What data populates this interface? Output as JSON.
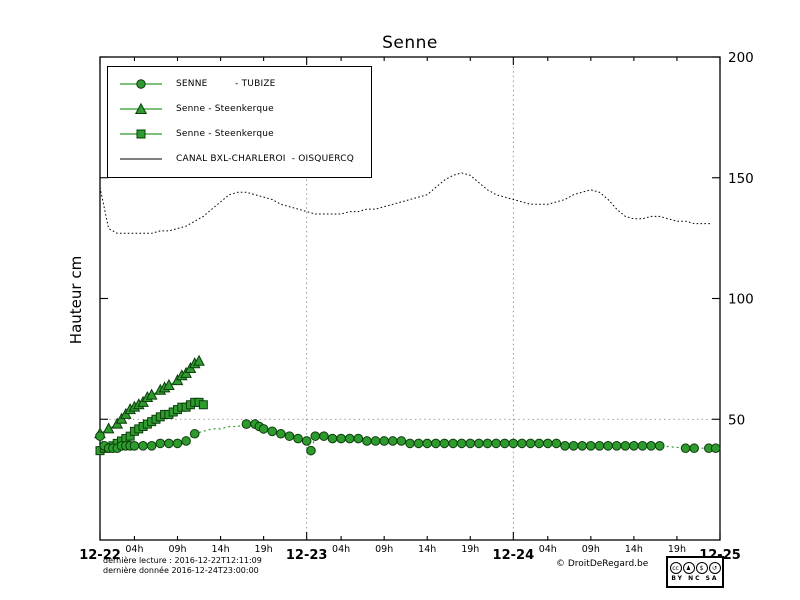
{
  "title": "Senne",
  "ylabel": "Hauteur cm",
  "colors": {
    "series_green": "#2f9b2f",
    "marker_edge": "#0a3d0a",
    "canal_black": "#000000"
  },
  "legend": [
    {
      "label": "SENNE         - TUBIZE",
      "marker": "circle"
    },
    {
      "label": "Senne - Steenkerque",
      "marker": "triangle"
    },
    {
      "label": "Senne - Steenkerque",
      "marker": "square"
    },
    {
      "label": "CANAL BXL-CHARLEROI  - OISQUERCQ",
      "marker": "line"
    }
  ],
  "footer": {
    "line1": "dernière lecture : 2016-12-22T12:11:09",
    "line2": "dernière donnée  2016-12-24T23:00:00",
    "credit": "© DroitDeRegard.be",
    "badge_icons": [
      "cc",
      "♟",
      "$",
      "↺"
    ],
    "badge_text": "BY NC SA"
  },
  "chart_data": {
    "type": "line",
    "title": "Senne",
    "xlabel": "",
    "ylabel": "Hauteur cm",
    "x_unit": "hours since 2016-12-22 00:00",
    "xlim": [
      0,
      72
    ],
    "ylim": [
      0,
      200
    ],
    "y_ticks": [
      50,
      100,
      150,
      200
    ],
    "grid": {
      "v": [
        24,
        48
      ],
      "h": [
        50
      ]
    },
    "x_ticks_major": [
      {
        "h": 0,
        "label": "12-22"
      },
      {
        "h": 24,
        "label": "12-23"
      },
      {
        "h": 48,
        "label": "12-24"
      },
      {
        "h": 72,
        "label": "12-25"
      }
    ],
    "x_ticks_minor": [
      {
        "h": 4,
        "label": "04h"
      },
      {
        "h": 9,
        "label": "09h"
      },
      {
        "h": 14,
        "label": "14h"
      },
      {
        "h": 19,
        "label": "19h"
      },
      {
        "h": 28,
        "label": "04h"
      },
      {
        "h": 33,
        "label": "09h"
      },
      {
        "h": 38,
        "label": "14h"
      },
      {
        "h": 43,
        "label": "19h"
      },
      {
        "h": 52,
        "label": "04h"
      },
      {
        "h": 57,
        "label": "09h"
      },
      {
        "h": 62,
        "label": "14h"
      },
      {
        "h": 67,
        "label": "19h"
      }
    ],
    "series": [
      {
        "name": "CANAL BXL-CHARLEROI - OISQUERCQ",
        "marker": "none",
        "line": "fine",
        "color": "#000000",
        "start_h": 0,
        "step": 1,
        "values": [
          146,
          129,
          127,
          127,
          127,
          127,
          127,
          128,
          128,
          129,
          130,
          132,
          134,
          137,
          140,
          143,
          144,
          144,
          143,
          142,
          141,
          139,
          138,
          137,
          136,
          135,
          135,
          135,
          135,
          136,
          136,
          137,
          137,
          138,
          139,
          140,
          141,
          142,
          143,
          146,
          149,
          151,
          152,
          151,
          148,
          145,
          143,
          142,
          141,
          140,
          139,
          139,
          139,
          140,
          141,
          143,
          144,
          145,
          144,
          141,
          137,
          134,
          133,
          133,
          134,
          134,
          133,
          132,
          132,
          131,
          131,
          131
        ]
      },
      {
        "name": "Senne - Steenkerque (squares)",
        "marker": "square",
        "line": "solid",
        "color": "#2f9b2f",
        "points": [
          [
            0,
            37
          ],
          [
            0.5,
            38
          ],
          [
            1,
            38
          ],
          [
            1.5,
            39
          ],
          [
            2,
            40
          ],
          [
            2.5,
            41
          ],
          [
            3,
            42
          ],
          [
            3.5,
            43
          ],
          [
            4,
            45
          ],
          [
            4.5,
            46
          ],
          [
            5,
            47
          ],
          [
            5.5,
            48
          ],
          [
            6,
            49
          ],
          [
            6.5,
            50
          ],
          [
            7,
            51
          ],
          [
            7.5,
            52
          ],
          [
            8,
            52
          ],
          [
            8.5,
            53
          ],
          [
            9,
            54
          ],
          [
            9.5,
            55
          ],
          [
            10,
            55
          ],
          [
            10.5,
            56
          ],
          [
            11,
            57
          ],
          [
            11.5,
            57
          ],
          [
            12,
            56
          ]
        ]
      },
      {
        "name": "Senne - Steenkerque (triangles)",
        "marker": "triangle",
        "line": "solid",
        "color": "#2f9b2f",
        "points": [
          [
            0,
            44
          ],
          [
            1,
            46
          ],
          [
            2,
            48
          ],
          [
            2.5,
            50
          ],
          [
            3,
            52
          ],
          [
            3.5,
            54
          ],
          [
            4,
            55
          ],
          [
            4.5,
            56
          ],
          [
            5,
            57
          ],
          [
            5.5,
            59
          ],
          [
            6,
            60
          ],
          [
            7,
            62
          ],
          [
            7.5,
            63
          ],
          [
            8,
            64
          ],
          [
            9,
            66
          ],
          [
            9.5,
            68
          ],
          [
            10,
            69
          ],
          [
            10.5,
            71
          ],
          [
            11,
            73
          ],
          [
            11.5,
            74
          ]
        ]
      },
      {
        "name": "SENNE - TUBIZE",
        "marker": "circle",
        "line": "dotted",
        "color": "#2f9b2f",
        "marker_skip": [
          12,
          13,
          14,
          15,
          16
        ],
        "points": [
          [
            0,
            43
          ],
          [
            0.5,
            39
          ],
          [
            1,
            38
          ],
          [
            1.5,
            38
          ],
          [
            2,
            38
          ],
          [
            2.5,
            39
          ],
          [
            3,
            39
          ],
          [
            3.5,
            39
          ],
          [
            4,
            39
          ],
          [
            5,
            39
          ],
          [
            6,
            39
          ],
          [
            7,
            40
          ],
          [
            8,
            40
          ],
          [
            9,
            40
          ],
          [
            10,
            41
          ],
          [
            11,
            44
          ],
          [
            12,
            45
          ],
          [
            13,
            46
          ],
          [
            14,
            46
          ],
          [
            15,
            47
          ],
          [
            16,
            47
          ],
          [
            17,
            48
          ],
          [
            18,
            48
          ],
          [
            18.5,
            47
          ],
          [
            19,
            46
          ],
          [
            20,
            45
          ],
          [
            21,
            44
          ],
          [
            22,
            43
          ],
          [
            23,
            42
          ],
          [
            24,
            41
          ],
          [
            24.5,
            37
          ],
          [
            25,
            43
          ],
          [
            26,
            43
          ],
          [
            27,
            42
          ],
          [
            28,
            42
          ],
          [
            29,
            42
          ],
          [
            30,
            42
          ],
          [
            31,
            41
          ],
          [
            32,
            41
          ],
          [
            33,
            41
          ],
          [
            34,
            41
          ],
          [
            35,
            41
          ],
          [
            36,
            40
          ],
          [
            37,
            40
          ],
          [
            38,
            40
          ],
          [
            39,
            40
          ],
          [
            40,
            40
          ],
          [
            41,
            40
          ],
          [
            42,
            40
          ],
          [
            43,
            40
          ],
          [
            44,
            40
          ],
          [
            45,
            40
          ],
          [
            46,
            40
          ],
          [
            47,
            40
          ],
          [
            48,
            40
          ],
          [
            49,
            40
          ],
          [
            50,
            40
          ],
          [
            51,
            40
          ],
          [
            52,
            40
          ],
          [
            53,
            40
          ],
          [
            54,
            39
          ],
          [
            55,
            39
          ],
          [
            56,
            39
          ],
          [
            57,
            39
          ],
          [
            58,
            39
          ],
          [
            59,
            39
          ],
          [
            60,
            39
          ],
          [
            61,
            39
          ],
          [
            62,
            39
          ],
          [
            63,
            39
          ],
          [
            64,
            39
          ],
          [
            65,
            39
          ],
          [
            68,
            38
          ],
          [
            69,
            38
          ],
          [
            70.7,
            38
          ],
          [
            71.5,
            38
          ]
        ]
      }
    ]
  }
}
